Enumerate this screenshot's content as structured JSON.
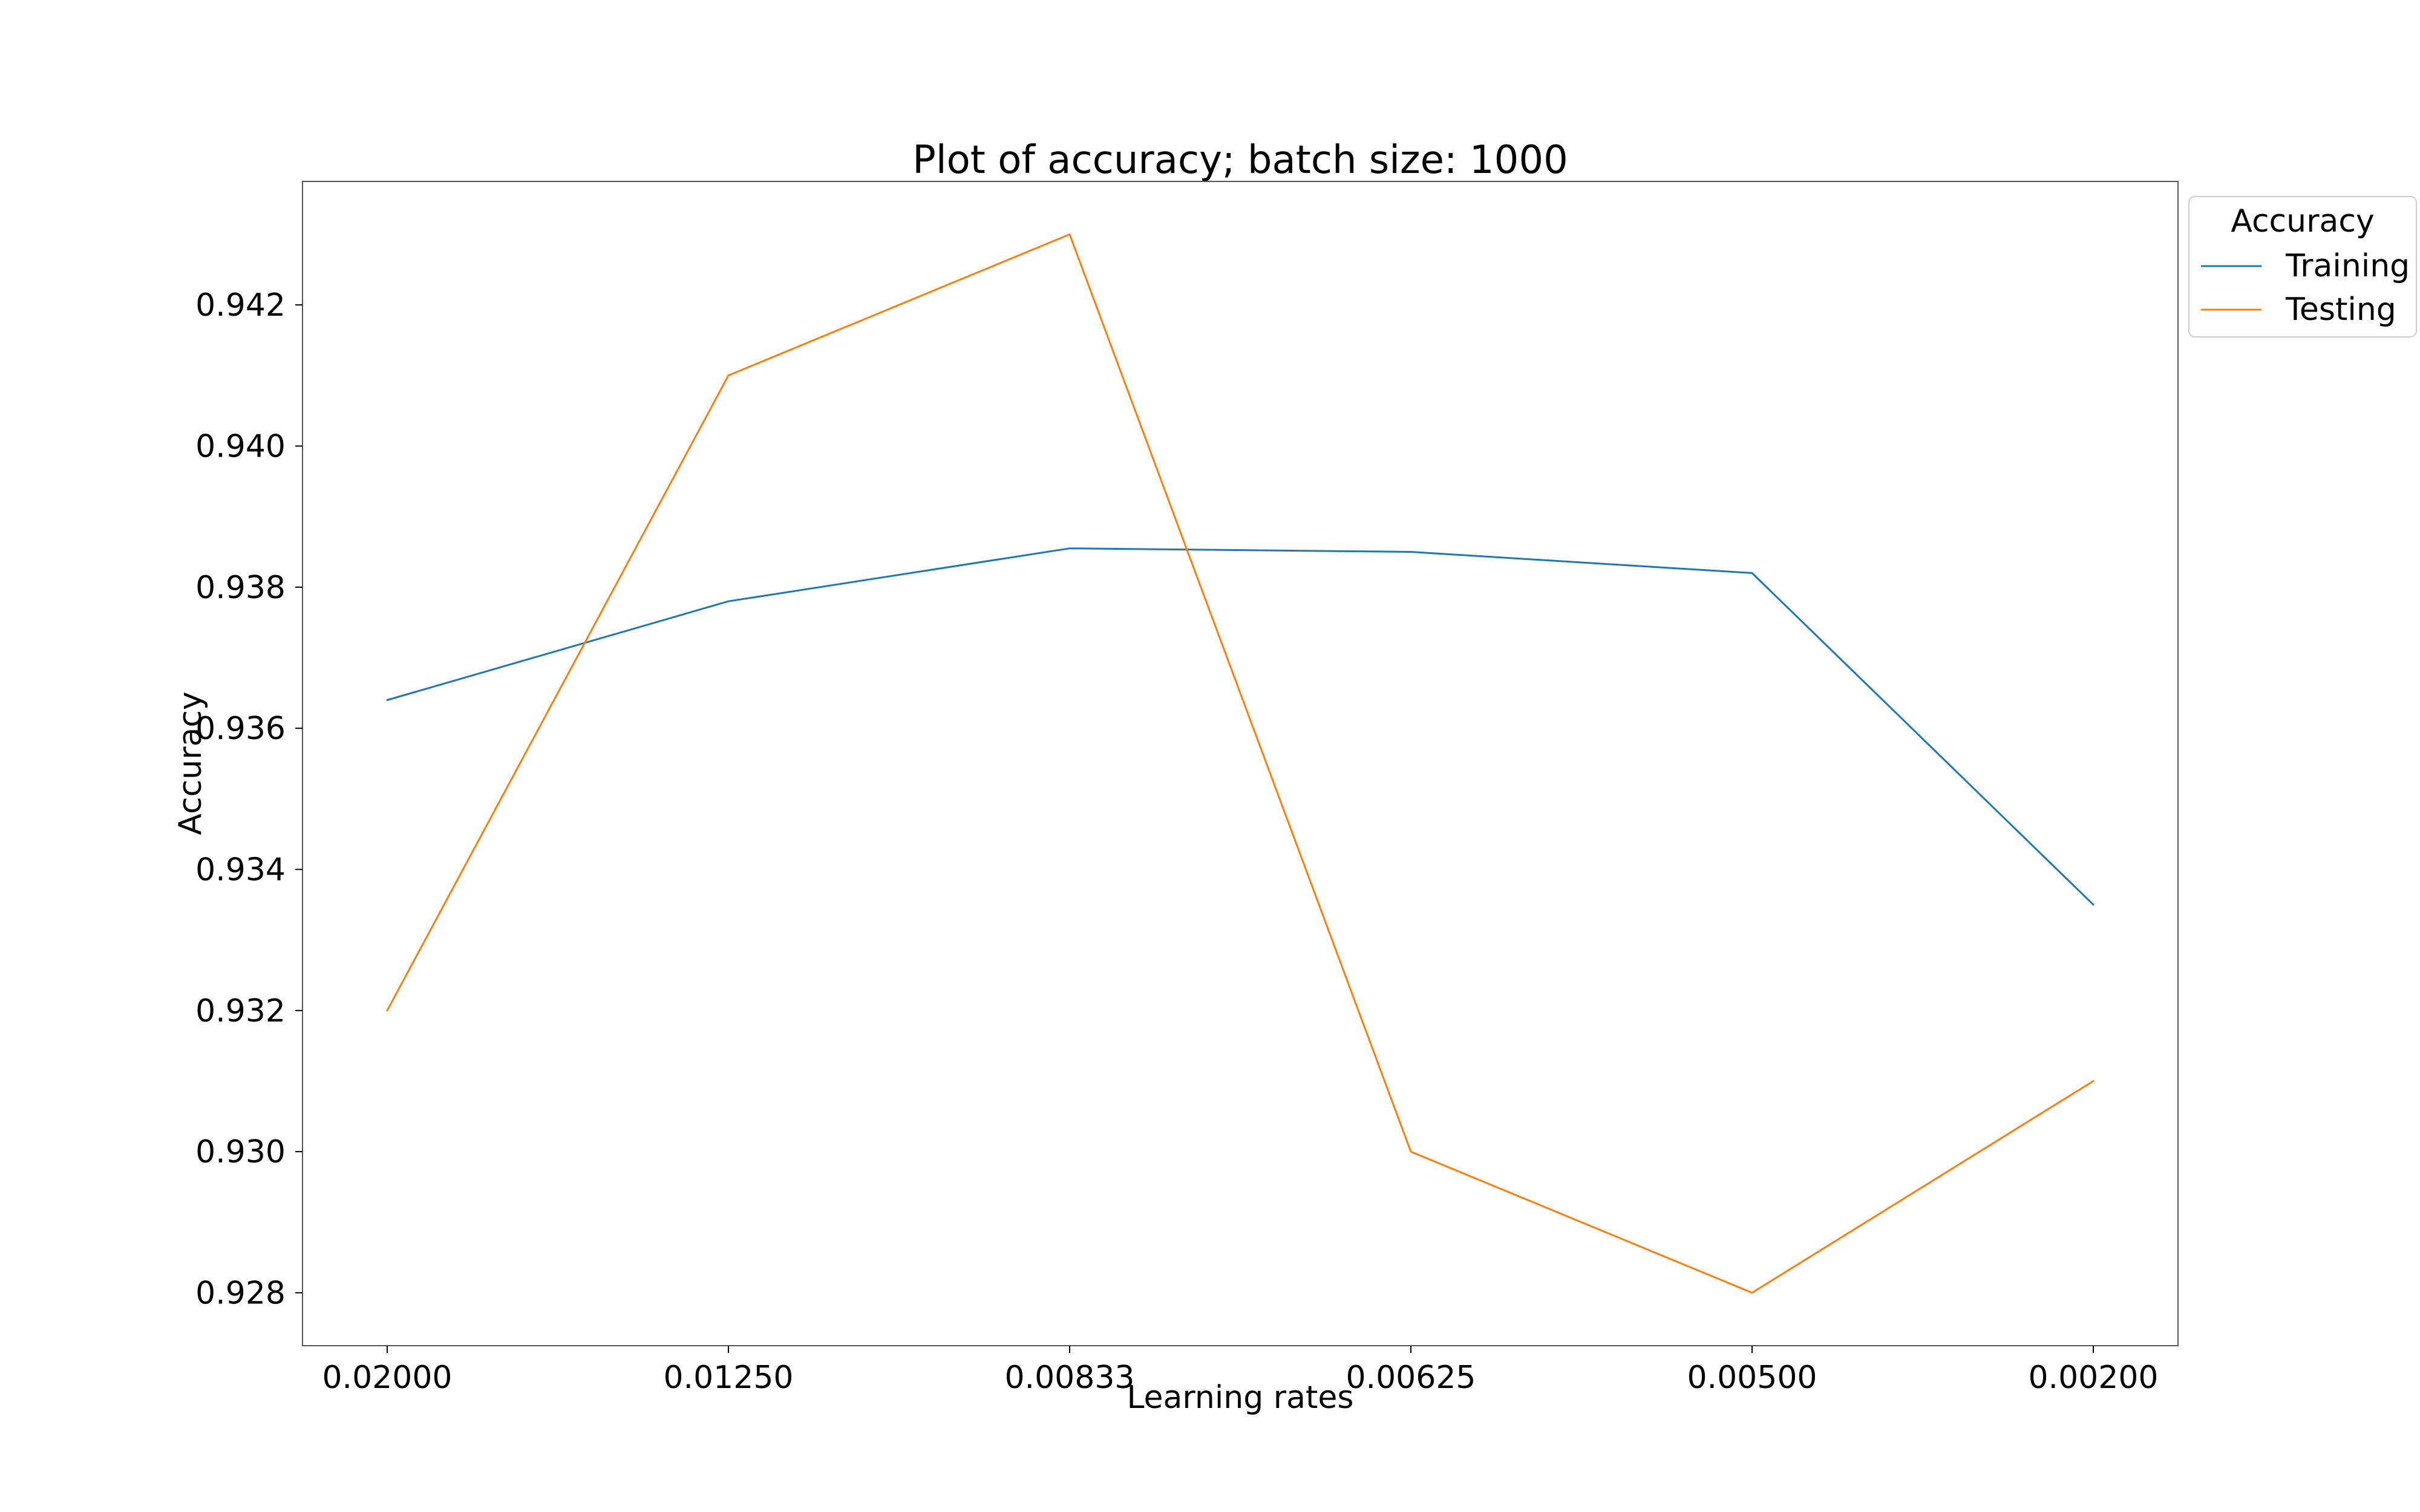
{
  "chart_data": {
    "type": "line",
    "title": "Plot of accuracy; batch size: 1000",
    "xlabel": "Learning rates",
    "ylabel": "Accuracy",
    "categories": [
      "0.02000",
      "0.01250",
      "0.00833",
      "0.00625",
      "0.00500",
      "0.00200"
    ],
    "ylim": [
      0.92725,
      0.94375
    ],
    "yticks": [
      "0.928",
      "0.930",
      "0.932",
      "0.934",
      "0.936",
      "0.938",
      "0.940",
      "0.942"
    ],
    "series": [
      {
        "name": "Training",
        "color": "#1f77b4",
        "values": [
          0.9364,
          0.9378,
          0.93855,
          0.9385,
          0.9382,
          0.9335
        ]
      },
      {
        "name": "Testing",
        "color": "#ff7f0e",
        "values": [
          0.932,
          0.941,
          0.943,
          0.93,
          0.928,
          0.931
        ]
      }
    ],
    "legend": {
      "title": "Accuracy",
      "placement": "outside top-right"
    },
    "grid": false
  }
}
